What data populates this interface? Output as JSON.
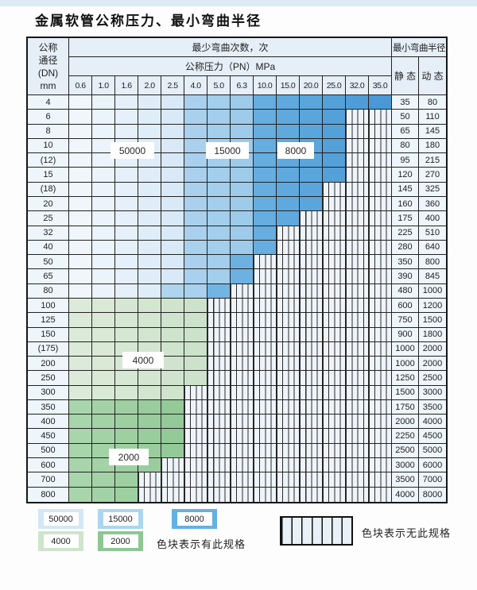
{
  "title": "金属软管公称压力、最小弯曲半径",
  "table": {
    "dn_header_lines": [
      "公称",
      "通径",
      "(DN)",
      "mm"
    ],
    "bend_times_header": "最少弯曲次数，次",
    "pressure_header": "公称压力（PN）MPa",
    "pressure_cols": [
      "0.6",
      "1.0",
      "1.6",
      "2.0",
      "2.5",
      "4.0",
      "5.0",
      "6.3",
      "10.0",
      "15.0",
      "20.0",
      "25.0",
      "32.0",
      "35.0"
    ],
    "radius_header": "最小弯曲半径",
    "static_header": "静 态",
    "dynamic_header": "动 态",
    "rows": [
      {
        "dn": "4",
        "static": "35",
        "dynamic": "80",
        "bands": {
          "c50000": [
            0,
            4
          ],
          "c15000": [
            5,
            7
          ],
          "c8000": [
            8,
            13
          ]
        }
      },
      {
        "dn": "6",
        "static": "50",
        "dynamic": "110",
        "bands": {
          "c50000": [
            0,
            4
          ],
          "c15000": [
            5,
            7
          ],
          "c8000": [
            8,
            11
          ]
        }
      },
      {
        "dn": "8",
        "static": "65",
        "dynamic": "145",
        "bands": {
          "c50000": [
            0,
            4
          ],
          "c15000": [
            5,
            7
          ],
          "c8000": [
            8,
            11
          ]
        }
      },
      {
        "dn": "10",
        "static": "80",
        "dynamic": "180",
        "bands": {
          "c50000": [
            0,
            4
          ],
          "c15000": [
            5,
            7
          ],
          "c8000": [
            8,
            11
          ]
        }
      },
      {
        "dn": "(12)",
        "static": "95",
        "dynamic": "215",
        "bands": {
          "c50000": [
            0,
            4
          ],
          "c15000": [
            5,
            7
          ],
          "c8000": [
            8,
            11
          ]
        }
      },
      {
        "dn": "15",
        "static": "120",
        "dynamic": "270",
        "bands": {
          "c50000": [
            0,
            4
          ],
          "c15000": [
            5,
            7
          ],
          "c8000": [
            8,
            11
          ]
        }
      },
      {
        "dn": "(18)",
        "static": "145",
        "dynamic": "325",
        "bands": {
          "c50000": [
            0,
            4
          ],
          "c15000": [
            5,
            7
          ],
          "c8000": [
            8,
            10
          ]
        }
      },
      {
        "dn": "20",
        "static": "160",
        "dynamic": "360",
        "bands": {
          "c50000": [
            0,
            4
          ],
          "c15000": [
            5,
            7
          ],
          "c8000": [
            8,
            10
          ]
        }
      },
      {
        "dn": "25",
        "static": "175",
        "dynamic": "400",
        "bands": {
          "c50000": [
            0,
            4
          ],
          "c15000": [
            5,
            7
          ],
          "c8000": [
            8,
            9
          ]
        }
      },
      {
        "dn": "32",
        "static": "225",
        "dynamic": "510",
        "bands": {
          "c50000": [
            0,
            4
          ],
          "c15000": [
            5,
            7
          ],
          "c8000": [
            8,
            8
          ]
        }
      },
      {
        "dn": "40",
        "static": "280",
        "dynamic": "640",
        "bands": {
          "c50000": [
            0,
            4
          ],
          "c15000": [
            5,
            7
          ],
          "c8000": [
            8,
            8
          ]
        }
      },
      {
        "dn": "50",
        "static": "350",
        "dynamic": "800",
        "bands": {
          "c50000": [
            0,
            4
          ],
          "c15000": [
            5,
            6
          ],
          "c8000": [
            7,
            7
          ]
        }
      },
      {
        "dn": "65",
        "static": "390",
        "dynamic": "845",
        "bands": {
          "c50000": [
            0,
            4
          ],
          "c15000": [
            5,
            6
          ],
          "c8000": [
            7,
            7
          ]
        }
      },
      {
        "dn": "80",
        "static": "480",
        "dynamic": "1000",
        "bands": {
          "c50000": [
            0,
            3
          ],
          "c15000": [
            4,
            5
          ],
          "c8000": [
            6,
            6
          ]
        }
      },
      {
        "dn": "100",
        "static": "600",
        "dynamic": "1200",
        "bands": {
          "c4000": [
            0,
            5
          ]
        }
      },
      {
        "dn": "125",
        "static": "750",
        "dynamic": "1500",
        "bands": {
          "c4000": [
            0,
            5
          ]
        }
      },
      {
        "dn": "150",
        "static": "900",
        "dynamic": "1800",
        "bands": {
          "c4000": [
            0,
            5
          ]
        }
      },
      {
        "dn": "(175)",
        "static": "1000",
        "dynamic": "2000",
        "bands": {
          "c4000": [
            0,
            5
          ]
        }
      },
      {
        "dn": "200",
        "static": "1000",
        "dynamic": "2000",
        "bands": {
          "c4000": [
            0,
            5
          ]
        }
      },
      {
        "dn": "250",
        "static": "1250",
        "dynamic": "2500",
        "bands": {
          "c4000": [
            0,
            5
          ]
        }
      },
      {
        "dn": "300",
        "static": "1500",
        "dynamic": "3000",
        "bands": {
          "c4000": [
            0,
            4
          ]
        }
      },
      {
        "dn": "350",
        "static": "1750",
        "dynamic": "3500",
        "bands": {
          "c2000": [
            0,
            4
          ]
        }
      },
      {
        "dn": "400",
        "static": "2000",
        "dynamic": "4000",
        "bands": {
          "c2000": [
            0,
            4
          ]
        }
      },
      {
        "dn": "450",
        "static": "2250",
        "dynamic": "4500",
        "bands": {
          "c2000": [
            0,
            4
          ]
        }
      },
      {
        "dn": "500",
        "static": "2500",
        "dynamic": "5000",
        "bands": {
          "c2000": [
            0,
            4
          ]
        }
      },
      {
        "dn": "600",
        "static": "3000",
        "dynamic": "6000",
        "bands": {
          "c2000": [
            0,
            3
          ]
        }
      },
      {
        "dn": "700",
        "static": "3500",
        "dynamic": "7000",
        "bands": {
          "c2000": [
            0,
            2
          ]
        }
      },
      {
        "dn": "800",
        "static": "4000",
        "dynamic": "8000",
        "bands": {
          "c2000": [
            0,
            2
          ]
        }
      }
    ],
    "region_labels": [
      {
        "text": "50000"
      },
      {
        "text": "15000"
      },
      {
        "text": "8000"
      },
      {
        "text": "4000"
      },
      {
        "text": "2000"
      }
    ]
  },
  "legend": {
    "items": [
      {
        "label": "50000",
        "class": "c50000"
      },
      {
        "label": "15000",
        "class": "c15000"
      },
      {
        "label": "8000",
        "class": "c8000"
      },
      {
        "label": "4000",
        "class": "c4000"
      },
      {
        "label": "2000",
        "class": "c2000"
      }
    ],
    "available_label": "色块表示有此规格",
    "unavailable_label": "色块表示无此规格"
  },
  "colors": {
    "c50000": [
      "#f0f6fc",
      "#ebf3fb",
      "#e5f0fa",
      "#dfedf8",
      "#d9e9f7",
      "#d3e6f5",
      "#cde3f4",
      "#c8e0f3",
      "#c2ddf2",
      "#bcdaf0",
      "#b6d7ef",
      "#b0d3ee",
      "#aad0ec",
      "#a4cdeb"
    ],
    "c15000": [
      "#c4e0f4",
      "#bfddf2",
      "#b9daf1",
      "#b4d7f0",
      "#aed4ee",
      "#a9d1ed",
      "#a3ceec",
      "#9ecbea",
      "#98c8e9",
      "#93c5e8",
      "#8dc2e6",
      "#88bfe5",
      "#82bce4",
      "#7db9e2"
    ],
    "c8000": [
      "#96cdf0",
      "#90c9ee",
      "#8ac5ec",
      "#84c1ea",
      "#7ebde8",
      "#78b9e6",
      "#72b5e4",
      "#6cb1e2",
      "#66ade0",
      "#60a9de",
      "#5aa5dc",
      "#54a1da",
      "#4e9dd8",
      "#4899d6"
    ],
    "c4000": [
      "#dcebd9",
      "#d9e9d6",
      "#d6e8d3",
      "#d3e6d0",
      "#d0e4cd",
      "#cde2ca"
    ],
    "c2000": [
      "#a8d5ab",
      "#a3d2a6",
      "#9ecfa1",
      "#99cd9d",
      "#94ca98"
    ],
    "legend_swatches": {
      "c50000": "#d3e7f6",
      "c15000": "#a9d6f0",
      "c8000": "#62b1e4",
      "c4000": "#cfe4cd",
      "c2000": "#8cc892"
    }
  }
}
